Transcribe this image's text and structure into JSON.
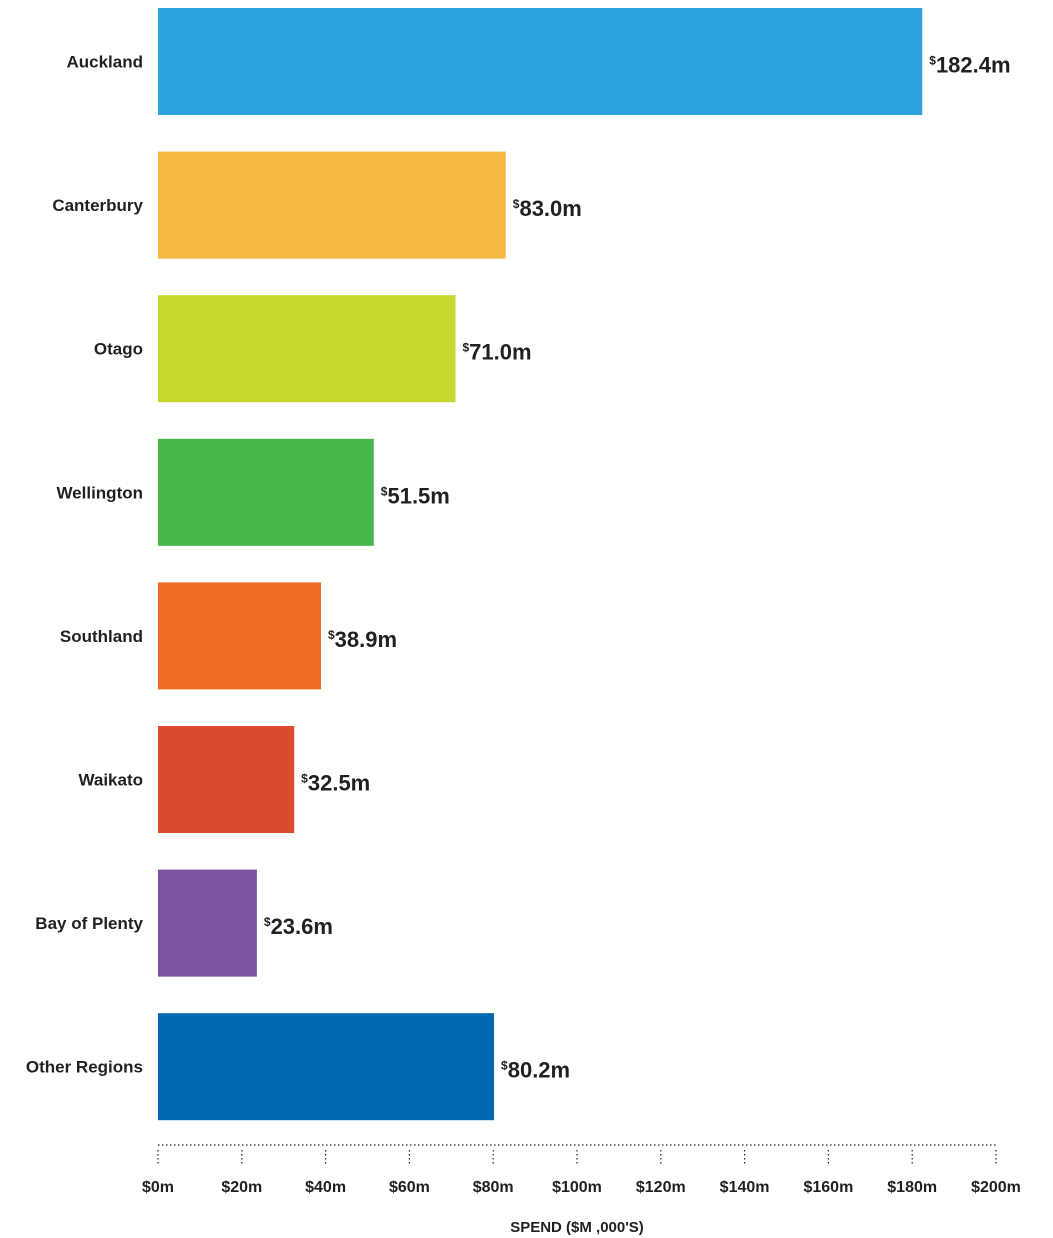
{
  "chart_data": {
    "type": "bar",
    "orientation": "horizontal",
    "title": "",
    "xlabel": "SPEND ($M ,000'S)",
    "ylabel": "",
    "xlim": [
      0,
      200
    ],
    "grid": false,
    "legend": "none",
    "categories": [
      "Auckland",
      "Canterbury",
      "Otago",
      "Wellington",
      "Southland",
      "Waikato",
      "Bay of Plenty",
      "Other Regions"
    ],
    "values": [
      182.4,
      83.0,
      71.0,
      51.5,
      38.9,
      32.5,
      23.6,
      80.2
    ],
    "value_labels": [
      "182.4m",
      "83.0m",
      "71.0m",
      "51.5m",
      "38.9m",
      "32.5m",
      "23.6m",
      "80.2m"
    ],
    "value_prefix": "$",
    "colors": [
      "#2ca3dc",
      "#f5b841",
      "#c4d82e",
      "#45b74b",
      "#f06c23",
      "#dc4a2d",
      "#7b53a0",
      "#0067b1"
    ],
    "x_ticks": [
      0,
      20,
      40,
      60,
      80,
      100,
      120,
      140,
      160,
      180,
      200
    ],
    "x_tick_labels": [
      "$0m",
      "$20m",
      "$40m",
      "$60m",
      "$80m",
      "$100m",
      "$120m",
      "$140m",
      "$160m",
      "$180m",
      "$200m"
    ]
  }
}
